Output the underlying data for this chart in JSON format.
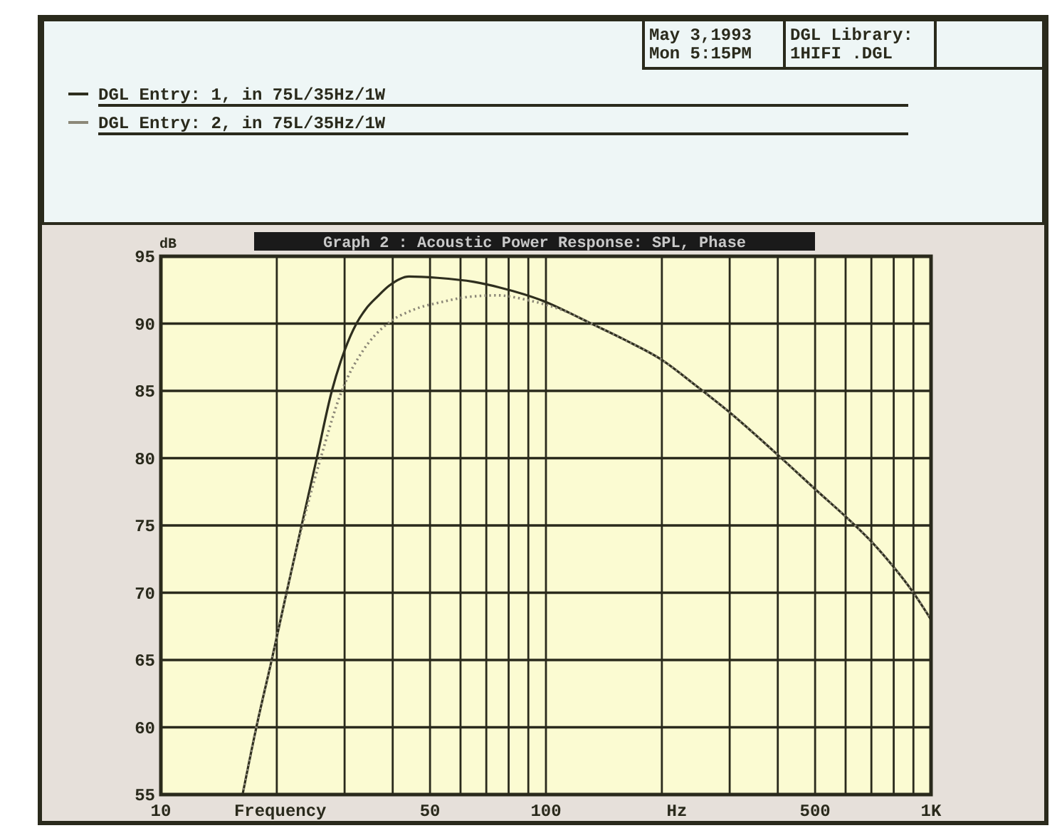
{
  "chart_data": {
    "type": "line",
    "title": "Graph 2 : Acoustic Power Response: SPL, Phase",
    "xlabel": "Frequency",
    "ylabel": "dB",
    "annotations": [
      "Hz",
      "May 3,1993\nMon 5:15PM",
      "DGL Library:\n1HIFI .DGL"
    ],
    "log": "x",
    "xlim": [
      10,
      1000
    ],
    "xticks": [
      10,
      {
        "value": 20,
        "label": null
      },
      {
        "value": 30,
        "label": null
      },
      {
        "value": 40,
        "label": null
      },
      50,
      {
        "value": 60,
        "label": null
      },
      {
        "value": 70,
        "label": null
      },
      {
        "value": 80,
        "label": null
      },
      {
        "value": 90,
        "label": null
      },
      100,
      {
        "value": 200,
        "label": null
      },
      {
        "value": 300,
        "label": null
      },
      {
        "value": 400,
        "label": null
      },
      500,
      {
        "value": 600,
        "label": null
      },
      {
        "value": 700,
        "label": null
      },
      {
        "value": 800,
        "label": null
      },
      {
        "value": 900,
        "label": null
      },
      {
        "value": 1000,
        "label": "1K"
      }
    ],
    "ylim": [
      55,
      95
    ],
    "yticks": [
      55,
      60,
      65,
      70,
      75,
      80,
      85,
      90,
      95
    ],
    "grid": true,
    "legend": "top left",
    "series": [
      {
        "name": "DGL Entry: 1, in 75L/35Hz/1W",
        "color": "#2e2e1e",
        "line_style": "solid",
        "x": [
          16.3,
          17.7,
          19.4,
          21.2,
          23.2,
          25.4,
          27.8,
          30,
          32.2,
          34.1,
          36.5,
          39.1,
          44.1,
          52.3,
          65,
          75.4,
          100,
          115,
          129,
          160,
          200,
          245,
          300,
          398,
          500,
          635,
          700,
          800,
          895,
          1000
        ],
        "values": [
          55,
          60,
          65,
          70,
          75,
          80,
          85,
          88,
          90,
          91.1,
          92,
          92.8,
          93.5,
          93.4,
          93.1,
          92.7,
          91.6,
          90.8,
          90.1,
          88.8,
          87.3,
          85.4,
          83.4,
          80.3,
          77.7,
          75,
          73.8,
          71.9,
          70.1,
          68
        ]
      },
      {
        "name": "DGL Entry: 2, in 75L/35Hz/1W",
        "color": "#8c8878",
        "line_style": "dotted",
        "x": [
          16.3,
          17.7,
          19.4,
          21.2,
          23.3,
          26,
          29.5,
          33.5,
          38.8,
          45,
          53.5,
          63.6,
          75,
          88,
          100,
          115,
          129,
          160,
          200,
          245,
          300,
          398,
          500,
          635,
          700,
          800,
          895,
          1000
        ],
        "values": [
          55,
          60,
          65,
          70,
          75,
          80,
          85,
          88,
          90,
          91,
          91.6,
          92,
          92.1,
          91.8,
          91.4,
          90.8,
          90.1,
          88.8,
          87.3,
          85.4,
          83.4,
          80.3,
          77.7,
          75,
          73.8,
          71.9,
          70.1,
          68
        ]
      }
    ]
  }
}
